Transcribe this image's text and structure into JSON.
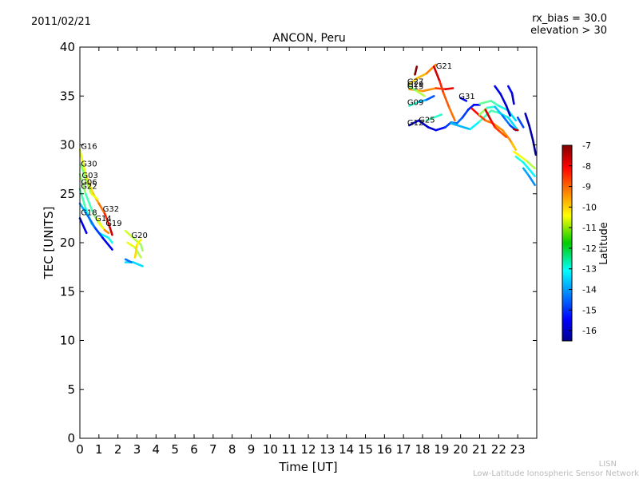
{
  "chart_data": {
    "type": "scatter",
    "date": "2011/02/21",
    "title": "ANCON, Peru",
    "annotations": [
      "rx_bias = 30.0",
      "elevation > 30"
    ],
    "xlabel": "Time [UT]",
    "ylabel": "TEC [UNITS]",
    "xlim": [
      0,
      24
    ],
    "ylim": [
      0,
      40
    ],
    "xticks": [
      0,
      1,
      2,
      3,
      4,
      5,
      6,
      7,
      8,
      9,
      10,
      11,
      12,
      13,
      14,
      15,
      16,
      17,
      18,
      19,
      20,
      21,
      22,
      23
    ],
    "yticks": [
      0,
      5,
      10,
      15,
      20,
      25,
      30,
      35,
      40
    ],
    "colorbar": {
      "label": "Latitude",
      "min": -16.5,
      "max": -7,
      "ticks": [
        -16,
        -15,
        -14,
        -13,
        -12,
        -11,
        -10,
        -9,
        -8,
        -7
      ]
    },
    "satellite_labels": [
      {
        "name": "G16",
        "x": 0.05,
        "y": 29.6
      },
      {
        "name": "G30",
        "x": 0.05,
        "y": 27.8
      },
      {
        "name": "G03",
        "x": 0.1,
        "y": 26.6
      },
      {
        "name": "G06",
        "x": 0.05,
        "y": 25.9
      },
      {
        "name": "G22",
        "x": 0.05,
        "y": 25.5
      },
      {
        "name": "G18",
        "x": 0.05,
        "y": 22.8
      },
      {
        "name": "G32",
        "x": 1.2,
        "y": 23.2
      },
      {
        "name": "G14",
        "x": 0.8,
        "y": 22.2
      },
      {
        "name": "G19",
        "x": 1.35,
        "y": 21.7
      },
      {
        "name": "G20",
        "x": 2.7,
        "y": 20.5
      },
      {
        "name": "G21",
        "x": 18.7,
        "y": 37.8
      },
      {
        "name": "G27",
        "x": 17.2,
        "y": 36.2
      },
      {
        "name": "G29",
        "x": 17.2,
        "y": 35.9
      },
      {
        "name": "G15",
        "x": 17.2,
        "y": 35.7
      },
      {
        "name": "G31",
        "x": 19.9,
        "y": 34.7
      },
      {
        "name": "G09",
        "x": 17.2,
        "y": 34.1
      },
      {
        "name": "G25",
        "x": 17.8,
        "y": 32.3
      },
      {
        "name": "G12",
        "x": 17.2,
        "y": 32.0
      }
    ],
    "series": [
      {
        "name": "a1",
        "points": [
          [
            0,
            25.5,
            -12
          ],
          [
            0.3,
            23.5,
            -12.5
          ],
          [
            0.6,
            22,
            -13
          ],
          [
            1.0,
            21,
            -13.5
          ],
          [
            1.5,
            20.5,
            -12.5
          ],
          [
            1.7,
            20,
            -13
          ]
        ]
      },
      {
        "name": "a2",
        "points": [
          [
            0,
            27,
            -11
          ],
          [
            0.3,
            25,
            -12
          ],
          [
            0.7,
            23,
            -12.5
          ],
          [
            1.0,
            22,
            -11
          ],
          [
            1.3,
            21.3,
            -10
          ],
          [
            1.5,
            21,
            -9
          ]
        ]
      },
      {
        "name": "a3",
        "points": [
          [
            0,
            29.5,
            -11
          ],
          [
            0.3,
            27,
            -10.5
          ],
          [
            0.7,
            25,
            -10
          ],
          [
            1.0,
            24,
            -9.5
          ],
          [
            1.3,
            23,
            -9
          ]
        ]
      },
      {
        "name": "a4",
        "points": [
          [
            0.05,
            28,
            -12
          ],
          [
            0.3,
            26.5,
            -11.5
          ],
          [
            0.6,
            25,
            -11
          ],
          [
            0.9,
            24.5,
            -10.5
          ]
        ]
      },
      {
        "name": "a5",
        "points": [
          [
            0,
            24,
            -13.5
          ],
          [
            0.4,
            22.8,
            -14
          ],
          [
            0.8,
            21.5,
            -14.5
          ],
          [
            1.2,
            20.5,
            -15
          ],
          [
            1.7,
            19.3,
            -16
          ]
        ]
      },
      {
        "name": "a6",
        "points": [
          [
            0,
            22.5,
            -15
          ],
          [
            0.35,
            21,
            -16
          ]
        ]
      },
      {
        "name": "a7",
        "points": [
          [
            1.3,
            23,
            -9
          ],
          [
            1.5,
            22,
            -8
          ],
          [
            1.7,
            20.8,
            -7.5
          ]
        ]
      },
      {
        "name": "a8",
        "points": [
          [
            0.9,
            22.5,
            -10
          ],
          [
            1.2,
            21.5,
            -11.5
          ]
        ]
      },
      {
        "name": "a9",
        "points": [
          [
            2.4,
            21.2,
            -11
          ],
          [
            2.8,
            20.5,
            -11
          ],
          [
            3.2,
            19.8,
            -11.5
          ],
          [
            3.3,
            19.2,
            -11.5
          ]
        ]
      },
      {
        "name": "a10",
        "points": [
          [
            2.5,
            20,
            -10.5
          ],
          [
            2.9,
            19.5,
            -11
          ],
          [
            3.2,
            18.5,
            -11.5
          ]
        ]
      },
      {
        "name": "a11",
        "points": [
          [
            2.9,
            18.5,
            -10
          ],
          [
            3.0,
            19.8,
            -10.5
          ],
          [
            3.2,
            20.3,
            -10.5
          ]
        ]
      },
      {
        "name": "a12",
        "points": [
          [
            2.4,
            18,
            -13
          ],
          [
            2.8,
            18,
            -13.5
          ],
          [
            3.3,
            17.6,
            -13
          ]
        ]
      },
      {
        "name": "a13",
        "points": [
          [
            2.4,
            18.3,
            -14
          ],
          [
            2.7,
            18,
            -14.5
          ]
        ]
      },
      {
        "name": "b1",
        "points": [
          [
            17.3,
            36.2,
            -10.5
          ],
          [
            17.7,
            36.8,
            -10
          ],
          [
            18.2,
            37.3,
            -9.8
          ],
          [
            18.7,
            38.2,
            -9
          ]
        ]
      },
      {
        "name": "b2",
        "points": [
          [
            17.6,
            37.2,
            -7
          ],
          [
            17.7,
            38,
            -7
          ]
        ]
      },
      {
        "name": "b3",
        "points": [
          [
            18.6,
            38,
            -7.5
          ],
          [
            18.9,
            36.5,
            -8
          ],
          [
            19.1,
            35.3,
            -9
          ],
          [
            19.4,
            33.8,
            -9
          ],
          [
            19.7,
            32.5,
            -9.5
          ]
        ]
      },
      {
        "name": "b4",
        "points": [
          [
            17.3,
            35.7,
            -9.5
          ],
          [
            18,
            35.5,
            -10
          ],
          [
            18.7,
            35.8,
            -9
          ],
          [
            19.2,
            35.7,
            -8.5
          ],
          [
            19.6,
            35.8,
            -7.5
          ]
        ]
      },
      {
        "name": "b5",
        "points": [
          [
            17.3,
            36,
            -12
          ],
          [
            17.7,
            35.5,
            -11.5
          ],
          [
            18.1,
            35,
            -11
          ]
        ]
      },
      {
        "name": "b6",
        "points": [
          [
            17.3,
            34,
            -12
          ],
          [
            17.8,
            34.4,
            -13
          ],
          [
            18.2,
            34.6,
            -14
          ],
          [
            18.6,
            35,
            -15
          ]
        ]
      },
      {
        "name": "b7",
        "points": [
          [
            17.3,
            32,
            -15.5
          ],
          [
            17.8,
            32.5,
            -15.8
          ],
          [
            18.3,
            31.8,
            -16
          ],
          [
            18.7,
            31.5,
            -15.5
          ],
          [
            19.2,
            31.8,
            -15
          ],
          [
            19.5,
            32.3,
            -14.5
          ]
        ]
      },
      {
        "name": "b8",
        "points": [
          [
            18.2,
            32.5,
            -12
          ],
          [
            18.6,
            32.8,
            -12.5
          ],
          [
            19.0,
            33.1,
            -12.5
          ]
        ]
      },
      {
        "name": "b9",
        "points": [
          [
            19.5,
            32.3,
            -14
          ],
          [
            19.8,
            32.2,
            -14.2
          ],
          [
            20.1,
            32.8,
            -14.5
          ],
          [
            20.4,
            33.6,
            -15
          ],
          [
            20.7,
            34.1,
            -15.2
          ],
          [
            21.0,
            34.1,
            -15.5
          ]
        ]
      },
      {
        "name": "b10",
        "points": [
          [
            19.5,
            32.2,
            -13.5
          ],
          [
            20.0,
            31.9,
            -13.7
          ],
          [
            20.5,
            31.6,
            -13.5
          ],
          [
            21.0,
            32.4,
            -12.5
          ],
          [
            21.6,
            33.5,
            -12
          ],
          [
            22.0,
            33.3,
            -12.5
          ],
          [
            22.5,
            32.8,
            -13
          ],
          [
            23.0,
            31.5,
            -13.5
          ]
        ]
      },
      {
        "name": "b11",
        "points": [
          [
            20.0,
            34.8,
            -15
          ],
          [
            20.3,
            34.5,
            -15.5
          ]
        ]
      },
      {
        "name": "b12",
        "points": [
          [
            20.6,
            33.7,
            -8
          ],
          [
            21.0,
            33,
            -8.5
          ],
          [
            21.3,
            32.5,
            -9
          ],
          [
            21.7,
            32.2,
            -9.5
          ],
          [
            22.2,
            31.5,
            -9.5
          ],
          [
            22.6,
            30.5,
            -9.5
          ],
          [
            22.8,
            29.8,
            -9.5
          ]
        ]
      },
      {
        "name": "b13",
        "points": [
          [
            21.0,
            33.1,
            -11
          ],
          [
            21.4,
            33.8,
            -12
          ],
          [
            21.8,
            33.9,
            -13
          ],
          [
            22.2,
            33,
            -14
          ],
          [
            22.6,
            32,
            -14.5
          ],
          [
            22.9,
            31.5,
            -15
          ]
        ]
      },
      {
        "name": "b14",
        "points": [
          [
            21.0,
            34.2,
            -12
          ],
          [
            21.6,
            34.5,
            -12
          ],
          [
            22.0,
            34,
            -12.5
          ],
          [
            22.5,
            33.5,
            -13
          ],
          [
            22.9,
            32.5,
            -13.5
          ]
        ]
      },
      {
        "name": "b15",
        "points": [
          [
            21.3,
            33.6,
            -7.5
          ],
          [
            21.6,
            32.5,
            -8
          ],
          [
            21.8,
            31.8,
            -8.5
          ],
          [
            22.1,
            31.3,
            -9
          ],
          [
            22.4,
            30.8,
            -9
          ]
        ]
      },
      {
        "name": "b16",
        "points": [
          [
            21.8,
            36,
            -15.5
          ],
          [
            22.1,
            35.2,
            -15.5
          ],
          [
            22.4,
            34,
            -15.8
          ],
          [
            22.6,
            33,
            -16
          ]
        ]
      },
      {
        "name": "b17",
        "points": [
          [
            22.5,
            36,
            -15
          ],
          [
            22.7,
            35.3,
            -15.5
          ],
          [
            22.8,
            34.2,
            -16
          ]
        ]
      },
      {
        "name": "b18",
        "points": [
          [
            22.8,
            31.6,
            -7.5
          ],
          [
            23.0,
            31.5,
            -7.5
          ]
        ]
      },
      {
        "name": "b19",
        "points": [
          [
            22.8,
            29.3,
            -10.5
          ],
          [
            23.1,
            28.9,
            -10.5
          ],
          [
            23.5,
            28.3,
            -11
          ],
          [
            23.9,
            27.6,
            -11.5
          ]
        ]
      },
      {
        "name": "b20",
        "points": [
          [
            22.9,
            28.8,
            -12.5
          ],
          [
            23.3,
            28.2,
            -12.8
          ],
          [
            23.6,
            27.5,
            -13
          ],
          [
            23.9,
            26.8,
            -13
          ]
        ]
      },
      {
        "name": "b21",
        "points": [
          [
            23.3,
            27.6,
            -13.5
          ],
          [
            23.6,
            26.8,
            -14
          ],
          [
            23.9,
            25.9,
            -14
          ]
        ]
      },
      {
        "name": "b22",
        "points": [
          [
            23.4,
            33.2,
            -16
          ],
          [
            23.6,
            32,
            -16
          ],
          [
            23.8,
            30.5,
            -16.3
          ],
          [
            23.95,
            29,
            -16.5
          ]
        ]
      },
      {
        "name": "b23",
        "points": [
          [
            23.0,
            32.8,
            -14.5
          ],
          [
            23.3,
            31.8,
            -14.8
          ]
        ]
      },
      {
        "name": "b24",
        "points": [
          [
            22.7,
            30.2,
            -10
          ],
          [
            22.9,
            29.5,
            -10
          ]
        ]
      }
    ]
  },
  "watermark": {
    "line1": "LISN",
    "line2": "Low-Latitude Ionospheric Sensor Network"
  }
}
